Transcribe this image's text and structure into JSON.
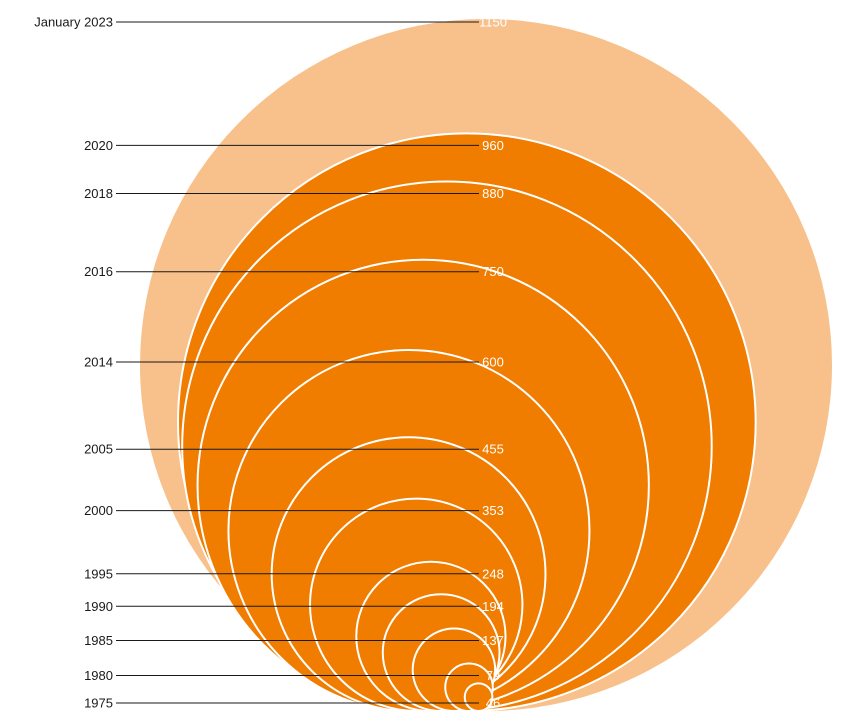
{
  "chart_data": {
    "type": "nested-circles",
    "title": "",
    "colors": {
      "current": "#f8c08a",
      "history": "#f07c00",
      "ring_stroke": "#ffffff",
      "leader_line": "#1a1a1a"
    },
    "series": [
      {
        "label": "January 2023",
        "value": 1150,
        "value_label": "1150",
        "highlight": true
      },
      {
        "label": "2020",
        "value": 960,
        "value_label": "960"
      },
      {
        "label": "2018",
        "value": 880,
        "value_label": "880"
      },
      {
        "label": "2016",
        "value": 750,
        "value_label": "750"
      },
      {
        "label": "2014",
        "value": 600,
        "value_label": "600"
      },
      {
        "label": "2005",
        "value": 455,
        "value_label": "455"
      },
      {
        "label": "2000",
        "value": 353,
        "value_label": "353"
      },
      {
        "label": "1995",
        "value": 248,
        "value_label": "248"
      },
      {
        "label": "1990",
        "value": 194,
        "value_label": "194"
      },
      {
        "label": "1985",
        "value": 137,
        "value_label": "137"
      },
      {
        "label": "1980",
        "value": 79,
        "value_label": "79"
      },
      {
        "label": "1975",
        "value": 46,
        "value_label": "46"
      }
    ]
  }
}
